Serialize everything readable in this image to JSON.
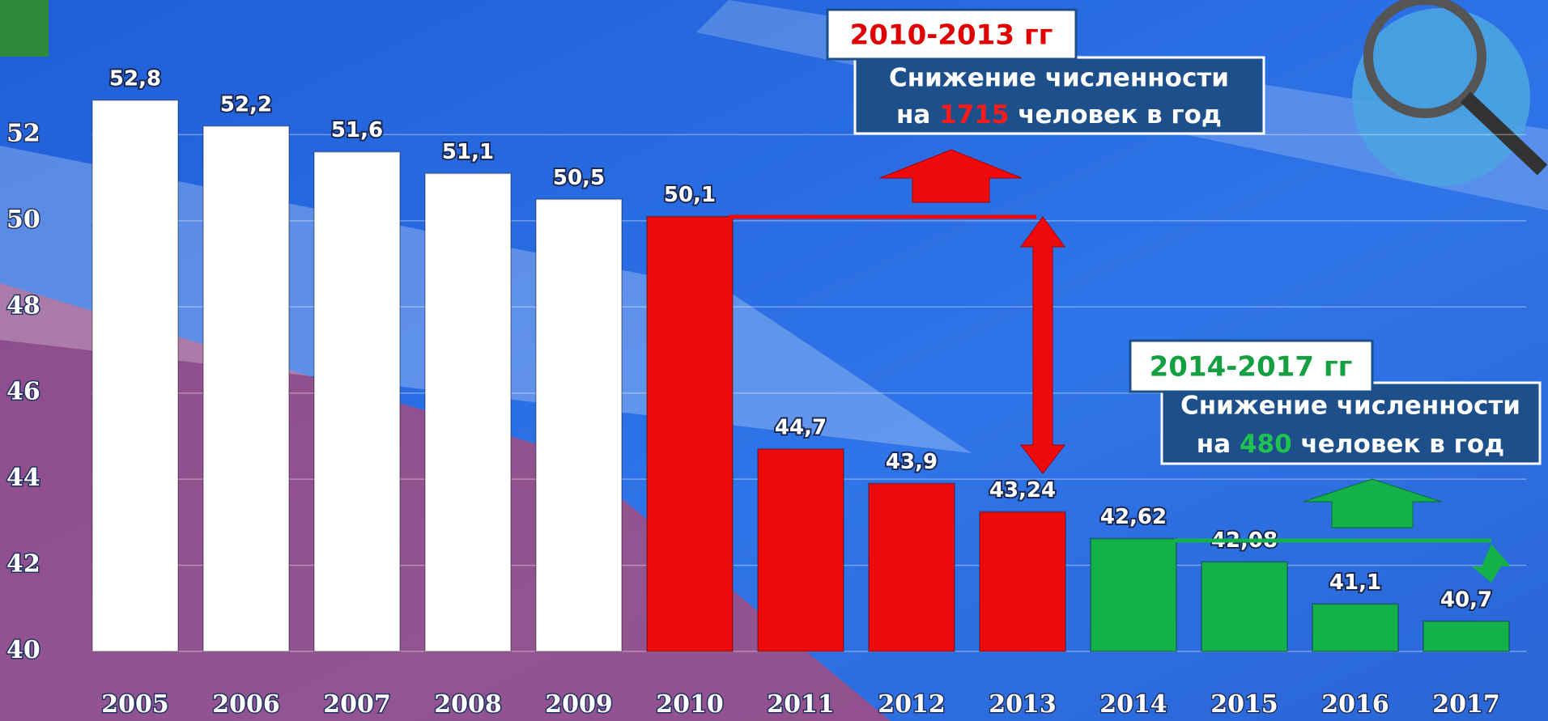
{
  "chart_data": {
    "type": "bar",
    "categories": [
      "2005",
      "2006",
      "2007",
      "2008",
      "2009",
      "2010",
      "2011",
      "2012",
      "2013",
      "2014",
      "2015",
      "2016",
      "2017"
    ],
    "values": [
      52.8,
      52.2,
      51.6,
      51.1,
      50.5,
      50.1,
      44.7,
      43.9,
      43.24,
      42.62,
      42.08,
      41.1,
      40.7
    ],
    "value_labels": [
      "52,8",
      "52,2",
      "51,6",
      "51,1",
      "50,5",
      "50,1",
      "44,7",
      "43,9",
      "43,24",
      "42,62",
      "42,08",
      "41,1",
      "40,7"
    ],
    "colors": [
      "#ffffff",
      "#ffffff",
      "#ffffff",
      "#ffffff",
      "#ffffff",
      "#ee0a0a",
      "#ee0a0a",
      "#ee0a0a",
      "#ee0a0a",
      "#14b04a",
      "#14b04a",
      "#14b04a",
      "#14b04a"
    ],
    "ylim": [
      40,
      54
    ],
    "yticks": [
      40,
      42,
      44,
      46,
      48,
      50,
      52
    ],
    "grid": true,
    "annotations": [
      {
        "period": "2010-2013 гг",
        "line1": "Снижение численности",
        "prefix": "на",
        "number": 1715,
        "suffix": "человек в год",
        "number_color": "#ff1a1a"
      },
      {
        "period": "2014-2017 гг",
        "line1": "Снижение численности",
        "prefix": "на",
        "number": 480,
        "suffix": "человек в год",
        "number_color": "#1fc24f"
      }
    ]
  }
}
